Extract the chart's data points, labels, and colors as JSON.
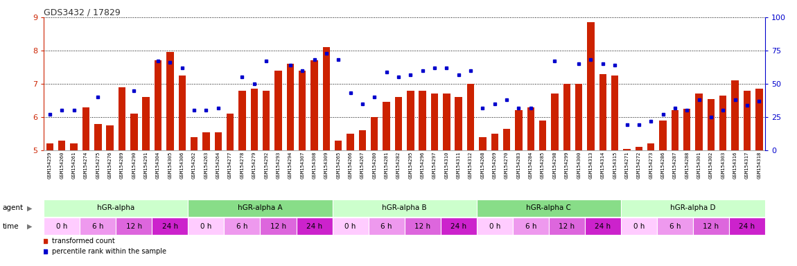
{
  "title": "GDS3432 / 17829",
  "samples": [
    "GSM154259",
    "GSM154260",
    "GSM154261",
    "GSM154274",
    "GSM154275",
    "GSM154276",
    "GSM154289",
    "GSM154290",
    "GSM154291",
    "GSM154304",
    "GSM154305",
    "GSM154306",
    "GSM154262",
    "GSM154263",
    "GSM154264",
    "GSM154277",
    "GSM154278",
    "GSM154279",
    "GSM154292",
    "GSM154293",
    "GSM154294",
    "GSM154307",
    "GSM154308",
    "GSM154309",
    "GSM154265",
    "GSM154266",
    "GSM154267",
    "GSM154280",
    "GSM154281",
    "GSM154282",
    "GSM154295",
    "GSM154296",
    "GSM154297",
    "GSM154310",
    "GSM154311",
    "GSM154312",
    "GSM154268",
    "GSM154269",
    "GSM154270",
    "GSM154283",
    "GSM154284",
    "GSM154285",
    "GSM154298",
    "GSM154299",
    "GSM154300",
    "GSM154313",
    "GSM154314",
    "GSM154315",
    "GSM154271",
    "GSM154272",
    "GSM154273",
    "GSM154286",
    "GSM154287",
    "GSM154288",
    "GSM154301",
    "GSM154302",
    "GSM154303",
    "GSM154316",
    "GSM154317",
    "GSM154318"
  ],
  "red_values": [
    5.2,
    5.3,
    5.2,
    6.3,
    5.8,
    5.75,
    6.9,
    6.1,
    6.6,
    7.7,
    7.95,
    7.25,
    5.4,
    5.55,
    5.55,
    6.1,
    6.8,
    6.85,
    6.8,
    7.4,
    7.6,
    7.4,
    7.7,
    8.1,
    5.3,
    5.5,
    5.6,
    6.0,
    6.45,
    6.6,
    6.8,
    6.8,
    6.7,
    6.7,
    6.6,
    7.0,
    5.4,
    5.5,
    5.65,
    6.2,
    6.3,
    5.9,
    6.7,
    7.0,
    7.0,
    8.85,
    7.3,
    7.25,
    5.05,
    5.1,
    5.2,
    5.9,
    6.2,
    6.25,
    6.7,
    6.55,
    6.65,
    7.1,
    6.8,
    6.85
  ],
  "blue_pct": [
    27,
    30,
    30,
    null,
    40,
    null,
    null,
    45,
    null,
    67,
    66,
    62,
    30,
    30,
    32,
    null,
    55,
    50,
    67,
    null,
    64,
    60,
    68,
    73,
    68,
    43,
    35,
    40,
    59,
    55,
    57,
    60,
    62,
    62,
    57,
    60,
    32,
    35,
    38,
    32,
    32,
    null,
    67,
    null,
    65,
    68,
    65,
    64,
    19,
    19,
    22,
    27,
    32,
    30,
    38,
    25,
    30,
    38,
    34,
    37
  ],
  "agents": [
    {
      "label": "hGR-alpha",
      "start": 0,
      "end": 12,
      "color": "#ccffcc"
    },
    {
      "label": "hGR-alpha A",
      "start": 12,
      "end": 24,
      "color": "#88dd88"
    },
    {
      "label": "hGR-alpha B",
      "start": 24,
      "end": 36,
      "color": "#ccffcc"
    },
    {
      "label": "hGR-alpha C",
      "start": 36,
      "end": 48,
      "color": "#88dd88"
    },
    {
      "label": "hGR-alpha D",
      "start": 48,
      "end": 60,
      "color": "#ccffcc"
    }
  ],
  "time_groups": [
    {
      "label": "0 h",
      "color": "#ffccff"
    },
    {
      "label": "6 h",
      "color": "#ee99ee"
    },
    {
      "label": "12 h",
      "color": "#dd66dd"
    },
    {
      "label": "24 h",
      "color": "#cc22cc"
    }
  ],
  "ylim_left": [
    5.0,
    9.0
  ],
  "yticks_left": [
    5,
    6,
    7,
    8,
    9
  ],
  "ylim_right": [
    0,
    100
  ],
  "yticks_right": [
    0,
    25,
    50,
    75,
    100
  ],
  "bar_color": "#cc2200",
  "dot_color": "#0000cc",
  "bar_width": 0.6,
  "left_axis_color": "#cc2200",
  "right_axis_color": "#0000cc"
}
